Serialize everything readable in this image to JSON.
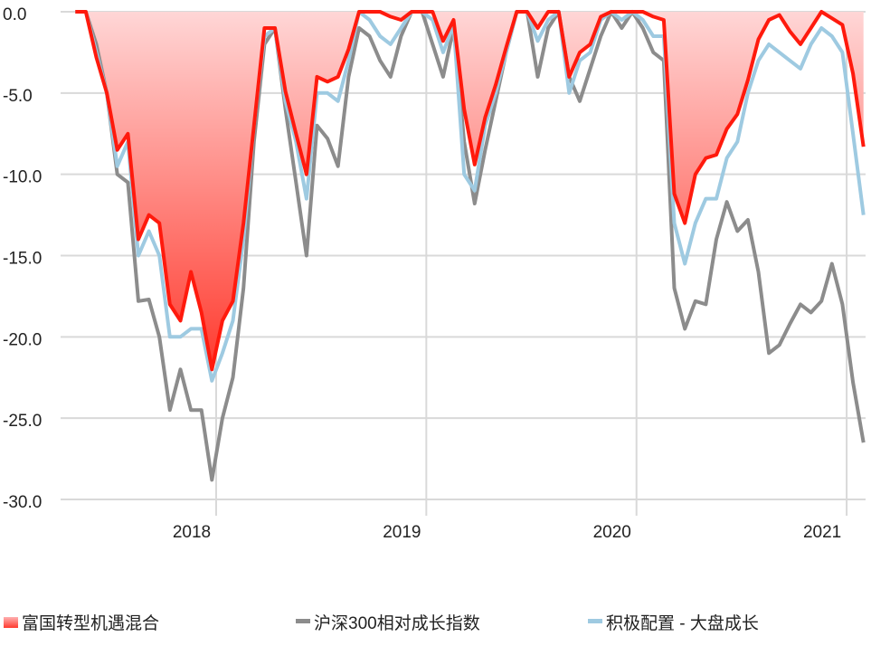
{
  "chart_data": {
    "type": "line",
    "x": [
      2017.33,
      2017.38,
      2017.43,
      2017.48,
      2017.53,
      2017.58,
      2017.63,
      2017.68,
      2017.73,
      2017.78,
      2017.83,
      2017.88,
      2017.93,
      2017.98,
      2018.03,
      2018.08,
      2018.13,
      2018.18,
      2018.23,
      2018.28,
      2018.33,
      2018.38,
      2018.43,
      2018.48,
      2018.53,
      2018.58,
      2018.63,
      2018.68,
      2018.73,
      2018.78,
      2018.83,
      2018.88,
      2018.93,
      2018.98,
      2019.03,
      2019.08,
      2019.13,
      2019.18,
      2019.23,
      2019.28,
      2019.33,
      2019.38,
      2019.43,
      2019.48,
      2019.53,
      2019.58,
      2019.63,
      2019.68,
      2019.73,
      2019.78,
      2019.83,
      2019.88,
      2019.93,
      2019.98,
      2020.03,
      2020.08,
      2020.13,
      2020.18,
      2020.23,
      2020.28,
      2020.33,
      2020.38,
      2020.43,
      2020.48,
      2020.53,
      2020.58,
      2020.63,
      2020.68,
      2020.73,
      2020.78,
      2020.83,
      2020.88,
      2020.93,
      2020.98,
      2021.03,
      2021.08
    ],
    "series": [
      {
        "name": "富国转型机遇混合",
        "color": "#ff1a0d",
        "area": true,
        "values": [
          0,
          0,
          -2.8,
          -5,
          -8.5,
          -7.5,
          -14,
          -12.5,
          -13,
          -18,
          -19,
          -16,
          -18.5,
          -22,
          -19,
          -17.8,
          -13,
          -7,
          -1,
          -1,
          -4.9,
          -7.5,
          -10,
          -4,
          -4.3,
          -4,
          -2.3,
          0,
          0,
          0,
          -0.3,
          -0.5,
          0,
          0,
          0,
          -1.8,
          -0.5,
          -6,
          -9.4,
          -6.5,
          -4.5,
          -2.2,
          0,
          0,
          -1,
          0,
          0,
          -4,
          -2.5,
          -2,
          -0.3,
          0,
          0,
          0,
          0,
          -0.3,
          -0.5,
          -11.2,
          -13,
          -10,
          -9,
          -8.8,
          -7.2,
          -6.3,
          -4.2,
          -1.7,
          -0.5,
          -0.2,
          -1.2,
          -2,
          -1,
          0,
          -0.4,
          -0.8,
          -3.8,
          -8.3
        ]
      },
      {
        "name": "沪深300相对成长指数",
        "color": "#8c8c8c",
        "values": [
          0,
          0,
          -2,
          -5,
          -10,
          -10.5,
          -17.8,
          -17.7,
          -20,
          -24.5,
          -22,
          -24.5,
          -24.5,
          -28.8,
          -25,
          -22.5,
          -17,
          -8,
          -2,
          -1,
          -6,
          -10.5,
          -15,
          -7,
          -7.8,
          -9.5,
          -4,
          -1,
          -1.5,
          -3,
          -4,
          -1.5,
          0,
          0,
          -2,
          -4,
          -1,
          -8,
          -11.8,
          -8.5,
          -5.5,
          -2.5,
          0,
          0,
          -4,
          -1,
          0,
          -4,
          -5.5,
          -3.5,
          -1.5,
          0,
          -1,
          0,
          -1,
          -2.5,
          -3,
          -17,
          -19.5,
          -17.8,
          -18,
          -14,
          -11.7,
          -13.5,
          -12.8,
          -16,
          -21,
          -20.5,
          -19.2,
          -18,
          -18.5,
          -17.8,
          -15.5,
          -18,
          -22.8,
          -26.5
        ]
      },
      {
        "name": "积极配置 - 大盘成长",
        "color": "#9ecae1",
        "values": [
          0,
          0,
          -2.5,
          -5,
          -9.5,
          -8,
          -15,
          -13.5,
          -15,
          -20,
          -20,
          -19.5,
          -19.5,
          -22.7,
          -21,
          -19,
          -14,
          -7,
          -1.5,
          -1,
          -5.5,
          -8,
          -11.5,
          -5,
          -5,
          -5.5,
          -3,
          0,
          -0.5,
          -1.5,
          -2,
          -1,
          0,
          0,
          -0.5,
          -2.5,
          -0.8,
          -10,
          -11,
          -7,
          -5,
          -2.5,
          0,
          0,
          -1.8,
          -0.5,
          0,
          -5,
          -3,
          -2.5,
          -0.5,
          0,
          -0.5,
          0,
          -0.5,
          -1.5,
          -1.5,
          -13,
          -15.5,
          -13,
          -11.5,
          -11.5,
          -9,
          -8,
          -5,
          -3,
          -2,
          -2.5,
          -3,
          -3.5,
          -2,
          -1,
          -1.5,
          -2.5,
          -7.5,
          -12.5
        ]
      }
    ],
    "xlim": [
      2017.26,
      2021.09
    ],
    "xticks": [
      2018,
      2019,
      2020,
      2021
    ],
    "ylim": [
      -30,
      0
    ],
    "yticks": [
      {
        "value": 0,
        "label": "0.0"
      },
      {
        "value": -5,
        "label": "-5.0"
      },
      {
        "value": -10,
        "label": "-10.0"
      },
      {
        "value": -15,
        "label": "-15.0"
      },
      {
        "value": -20,
        "label": "-20.0"
      },
      {
        "value": -25,
        "label": "-25.0"
      },
      {
        "value": -30,
        "label": "-30.0"
      }
    ],
    "grid": true,
    "legend": "bottom"
  }
}
